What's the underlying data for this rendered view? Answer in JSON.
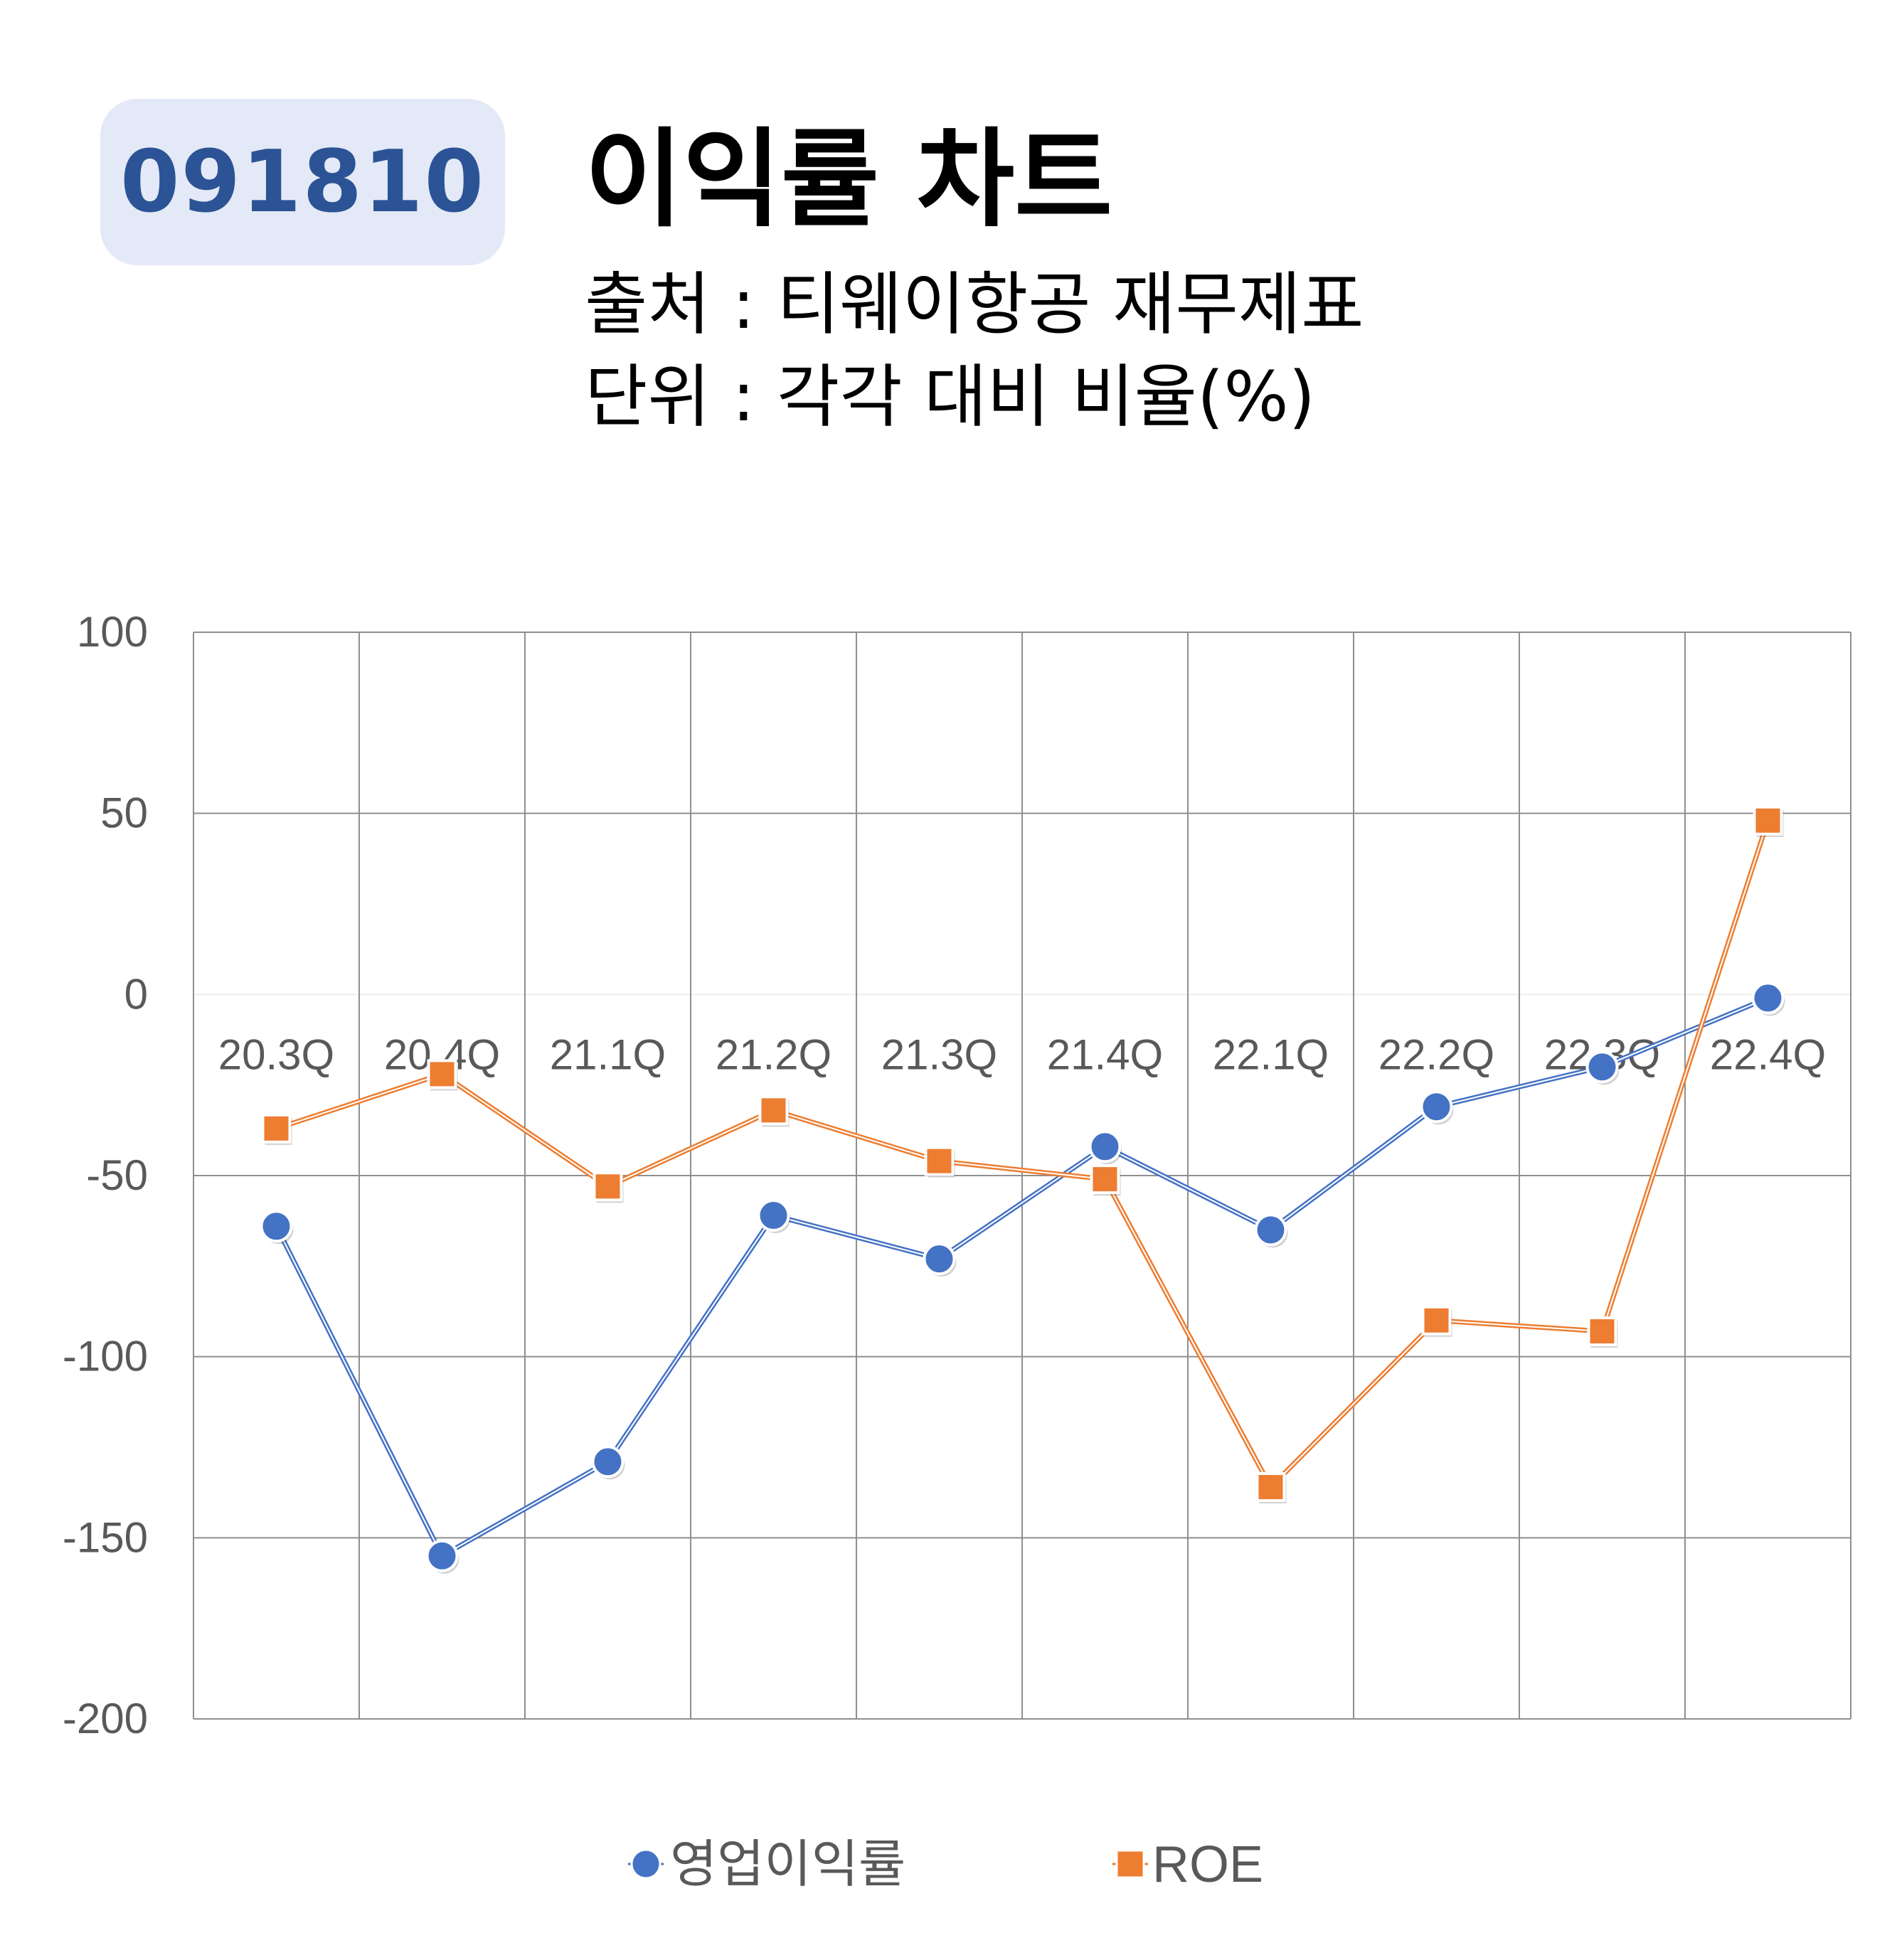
{
  "header": {
    "code": "091810",
    "title": "이익률 차트",
    "source": "출처 : 티웨이항공 재무제표",
    "unit": "단위 : 각각 대비 비율(%)"
  },
  "chart_data": {
    "type": "line",
    "categories": [
      "20.3Q",
      "20.4Q",
      "21.1Q",
      "21.2Q",
      "21.3Q",
      "21.4Q",
      "22.1Q",
      "22.2Q",
      "22.3Q",
      "22.4Q"
    ],
    "series": [
      {
        "name": "영업이익률",
        "color": "#4472c4",
        "marker": "circle",
        "values": [
          -64,
          -155,
          -129,
          -61,
          -73,
          -42,
          -65,
          -31,
          -20,
          -1
        ]
      },
      {
        "name": "ROE",
        "color": "#ed7d31",
        "marker": "square",
        "values": [
          -37,
          -22,
          -53,
          -32,
          -46,
          -51,
          -136,
          -90,
          -93,
          48
        ]
      }
    ],
    "yticks": [
      100,
      50,
      0,
      -50,
      -100,
      -150,
      -200
    ],
    "ylim": [
      -200,
      100
    ],
    "grid": true,
    "legend_position": "bottom"
  }
}
